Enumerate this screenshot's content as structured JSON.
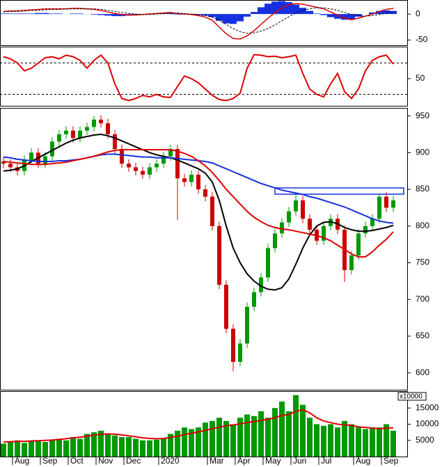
{
  "chart_data": [
    {
      "type": "macd",
      "ylim": [
        -60,
        27
      ],
      "yticks": [
        0,
        -50
      ],
      "histogram": {
        "color": "#1530e0",
        "values": [
          1,
          1,
          1,
          1,
          1,
          2,
          2,
          1,
          1,
          0,
          1,
          1,
          0,
          -1,
          -2,
          -3,
          -4,
          -4,
          -3,
          -2,
          0,
          1,
          1,
          1,
          2,
          -1,
          -1,
          -1,
          -2,
          -3,
          -6,
          -13,
          -18,
          -19,
          -14,
          -5,
          4,
          13,
          20,
          24,
          25,
          23,
          18,
          12,
          6,
          1,
          -2,
          -6,
          -9,
          -11,
          -10,
          -5,
          0,
          3,
          6,
          7,
          6
        ]
      },
      "series": [
        {
          "color": "#dd0000",
          "dash": false,
          "values": [
            5,
            6,
            6,
            7,
            8,
            9,
            10,
            10,
            10,
            10,
            11,
            11,
            10,
            9,
            7,
            4,
            1,
            -1,
            -2,
            -2,
            -1,
            0,
            1,
            2,
            3,
            1,
            0,
            -1,
            -3,
            -6,
            -12,
            -25,
            -38,
            -47,
            -48,
            -42,
            -32,
            -20,
            -8,
            3,
            12,
            18,
            20,
            19,
            16,
            13,
            10,
            4,
            -2,
            -8,
            -11,
            -8,
            -4,
            0,
            5,
            9,
            11
          ]
        },
        {
          "color": "#000000",
          "dash": true,
          "values": [
            4,
            5,
            5,
            6,
            7,
            7,
            8,
            9,
            9,
            10,
            10,
            10,
            10,
            10,
            9,
            7,
            5,
            3,
            1,
            0,
            -1,
            -1,
            0,
            1,
            1,
            2,
            1,
            0,
            -1,
            -3,
            -6,
            -12,
            -20,
            -28,
            -34,
            -37,
            -36,
            -33,
            -28,
            -21,
            -13,
            -5,
            2,
            7,
            10,
            12,
            12,
            10,
            7,
            3,
            -1,
            -3,
            -4,
            -3,
            -1,
            2,
            5
          ]
        }
      ]
    },
    {
      "type": "line",
      "ylim": [
        0,
        110
      ],
      "yticks": [
        50
      ],
      "hlines": [
        20,
        80
      ],
      "series": [
        {
          "color": "#dd0000",
          "values": [
            92,
            88,
            80,
            65,
            70,
            80,
            90,
            92,
            88,
            95,
            92,
            85,
            70,
            85,
            95,
            80,
            40,
            12,
            8,
            12,
            18,
            15,
            20,
            15,
            14,
            35,
            55,
            50,
            42,
            30,
            18,
            10,
            8,
            12,
            22,
            70,
            96,
            95,
            92,
            93,
            90,
            92,
            95,
            60,
            30,
            20,
            15,
            40,
            60,
            25,
            12,
            30,
            65,
            85,
            92,
            95,
            78
          ]
        }
      ]
    },
    {
      "type": "candlestick",
      "ylim": [
        577,
        961
      ],
      "yticks": [
        600,
        650,
        700,
        750,
        800,
        850,
        900,
        950
      ],
      "up_color": "#009900",
      "down_color": "#cc0000",
      "open": [
        888,
        885,
        880,
        875,
        890,
        900,
        885,
        895,
        915,
        925,
        930,
        920,
        930,
        935,
        945,
        940,
        925,
        905,
        885,
        880,
        875,
        870,
        880,
        885,
        895,
        905,
        865,
        860,
        870,
        850,
        840,
        800,
        720,
        660,
        615,
        640,
        690,
        710,
        730,
        770,
        790,
        805,
        820,
        835,
        810,
        795,
        780,
        800,
        810,
        795,
        740,
        760,
        790,
        800,
        810,
        840,
        825
      ],
      "high": [
        894,
        891,
        886,
        896,
        906,
        906,
        901,
        921,
        931,
        936,
        936,
        936,
        941,
        950,
        951,
        946,
        931,
        911,
        891,
        886,
        881,
        886,
        891,
        901,
        911,
        911,
        871,
        876,
        876,
        856,
        846,
        806,
        726,
        666,
        646,
        696,
        716,
        736,
        776,
        796,
        811,
        826,
        845,
        841,
        816,
        801,
        806,
        816,
        816,
        801,
        766,
        796,
        806,
        816,
        845,
        846,
        841
      ],
      "low": [
        879,
        874,
        869,
        869,
        884,
        879,
        879,
        889,
        909,
        919,
        914,
        914,
        924,
        929,
        934,
        919,
        899,
        879,
        874,
        869,
        864,
        864,
        874,
        879,
        889,
        808,
        854,
        854,
        844,
        834,
        794,
        714,
        654,
        602,
        609,
        634,
        684,
        704,
        724,
        764,
        784,
        799,
        814,
        804,
        789,
        774,
        774,
        794,
        789,
        724,
        734,
        754,
        784,
        794,
        804,
        819,
        819
      ],
      "close": [
        885,
        880,
        875,
        890,
        900,
        885,
        895,
        915,
        925,
        930,
        920,
        930,
        935,
        945,
        940,
        925,
        905,
        885,
        880,
        875,
        870,
        880,
        885,
        895,
        905,
        865,
        860,
        870,
        850,
        840,
        800,
        720,
        660,
        615,
        640,
        690,
        710,
        730,
        770,
        790,
        805,
        820,
        835,
        810,
        795,
        780,
        800,
        810,
        795,
        740,
        760,
        790,
        800,
        810,
        840,
        825,
        835
      ],
      "series": [
        {
          "color": "#000000",
          "values": [
            875,
            876,
            878,
            882,
            888,
            893,
            898,
            903,
            908,
            913,
            917,
            920,
            922,
            924,
            925,
            923,
            920,
            916,
            912,
            908,
            904,
            900,
            897,
            895,
            893,
            890,
            886,
            882,
            878,
            872,
            860,
            835,
            800,
            770,
            750,
            735,
            725,
            718,
            714,
            713,
            716,
            728,
            748,
            770,
            788,
            800,
            805,
            806,
            803,
            798,
            795,
            793,
            793,
            794,
            796,
            798,
            801
          ]
        },
        {
          "color": "#1530e0",
          "values": [
            894,
            893,
            891,
            890,
            889,
            888,
            888,
            888,
            889,
            889,
            890,
            891,
            893,
            895,
            897,
            898,
            898,
            897,
            896,
            895,
            894,
            894,
            893,
            893,
            893,
            892,
            891,
            890,
            889,
            888,
            886,
            882,
            878,
            874,
            870,
            866,
            862,
            858,
            855,
            852,
            849,
            847,
            845,
            843,
            840,
            838,
            835,
            832,
            829,
            826,
            822,
            818,
            814,
            810,
            807,
            805,
            804
          ]
        },
        {
          "color": "#dd0000",
          "values": [
            888,
            887,
            886,
            885,
            884,
            884,
            884,
            885,
            886,
            887,
            889,
            891,
            893,
            895,
            898,
            901,
            903,
            904,
            904,
            904,
            904,
            904,
            904,
            904,
            904,
            902,
            899,
            895,
            889,
            882,
            873,
            862,
            850,
            840,
            830,
            820,
            812,
            806,
            801,
            798,
            796,
            795,
            793,
            791,
            789,
            787,
            784,
            780,
            774,
            768,
            762,
            758,
            758,
            765,
            774,
            782,
            792
          ]
        }
      ]
    },
    {
      "type": "bar",
      "ylim": [
        0,
        20000
      ],
      "yticks": [
        5000,
        10000,
        15000
      ],
      "unit_label": "x10000",
      "color": "#009900",
      "categories": [
        null,
        null,
        "Aug",
        null,
        null,
        null,
        "Sep",
        null,
        null,
        null,
        "Oct",
        null,
        null,
        null,
        "Nov",
        null,
        null,
        null,
        "Dec",
        null,
        null,
        null,
        null,
        "2020",
        null,
        null,
        null,
        null,
        null,
        null,
        "Mar",
        null,
        null,
        null,
        "Apr",
        null,
        null,
        null,
        "May",
        null,
        null,
        null,
        "Jun",
        null,
        null,
        null,
        "Jul",
        null,
        null,
        null,
        null,
        "Aug",
        null,
        null,
        null,
        "Sep",
        null
      ],
      "values": [
        4000,
        4500,
        5000,
        4200,
        4800,
        5000,
        4500,
        5200,
        5500,
        5000,
        6000,
        5500,
        7000,
        7500,
        8000,
        7000,
        6500,
        6000,
        6000,
        5500,
        5000,
        5000,
        5200,
        5500,
        7000,
        8000,
        9000,
        8500,
        9000,
        10500,
        11000,
        12000,
        11000,
        10000,
        12000,
        13000,
        12500,
        14000,
        12000,
        15000,
        17000,
        14000,
        19000,
        16000,
        12000,
        10000,
        9500,
        10000,
        9000,
        11000,
        10000,
        9000,
        8500,
        9000,
        9000,
        10000,
        8000
      ],
      "series": [
        {
          "color": "#dd0000",
          "values": [
            4500,
            4600,
            4700,
            4700,
            4800,
            4900,
            5000,
            5100,
            5300,
            5500,
            5800,
            6000,
            6300,
            6600,
            6900,
            7000,
            6900,
            6700,
            6400,
            6100,
            5800,
            5600,
            5500,
            5600,
            5900,
            6300,
            6800,
            7200,
            7600,
            8100,
            8600,
            9100,
            9500,
            9800,
            10100,
            10500,
            10800,
            11200,
            11500,
            12000,
            12700,
            13000,
            14000,
            14500,
            13500,
            12000,
            11000,
            10500,
            10000,
            9800,
            9600,
            9200,
            9000,
            8800,
            8600,
            8800,
            8900
          ]
        }
      ]
    }
  ]
}
